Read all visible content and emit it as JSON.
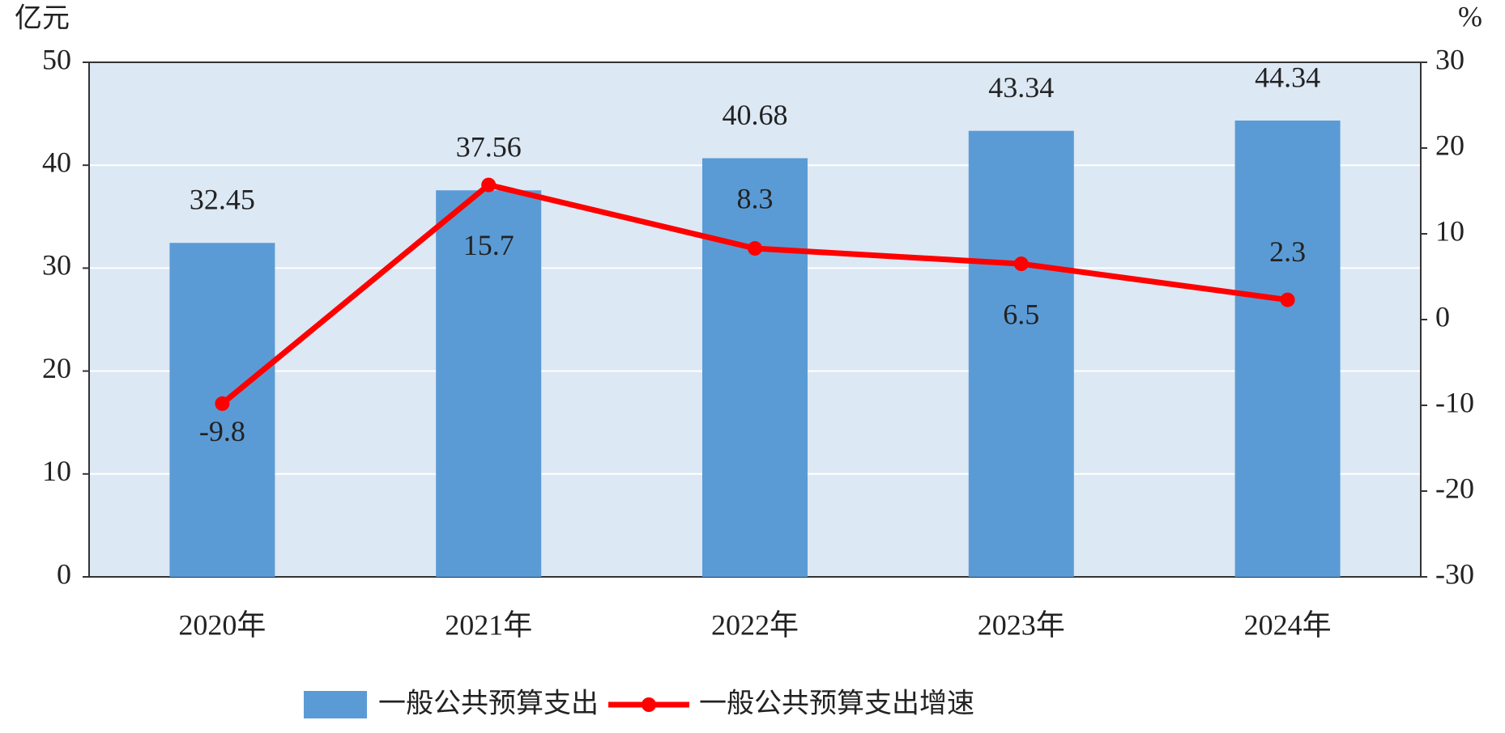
{
  "chart_data": {
    "type": "bar-line",
    "y_axis_label": "亿元",
    "y2_axis_label": "%",
    "categories": [
      "2020年",
      "2021年",
      "2022年",
      "2023年",
      "2024年"
    ],
    "series": [
      {
        "name": "一般公共预算支出",
        "type": "bar",
        "color": "#5b9bd5",
        "values": [
          32.45,
          37.56,
          40.68,
          43.34,
          44.34
        ]
      },
      {
        "name": "一般公共预算支出增速",
        "type": "line",
        "axis": "y2",
        "color": "#ff0000",
        "values": [
          -9.8,
          15.7,
          8.3,
          6.5,
          2.3
        ]
      }
    ],
    "ylim": [
      0,
      50
    ],
    "yticks": [
      0,
      10,
      20,
      30,
      40,
      50
    ],
    "y2lim": [
      -30,
      30
    ],
    "y2ticks": [
      -30,
      -20,
      -10,
      0,
      10,
      20,
      30
    ],
    "grid": true,
    "legend": "bottom"
  }
}
